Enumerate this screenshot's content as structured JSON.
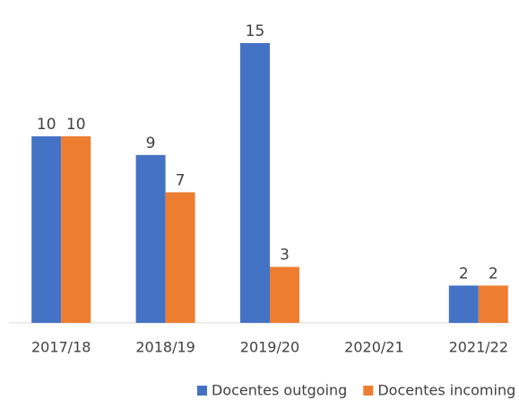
{
  "chart_data": {
    "type": "bar",
    "categories": [
      "2017/18",
      "2018/19",
      "2019/20",
      "2020/21",
      "2021/22"
    ],
    "series": [
      {
        "name": "Docentes outgoing",
        "color": "#4472c4",
        "values": [
          10,
          9,
          15,
          null,
          2
        ]
      },
      {
        "name": "Docentes incoming",
        "color": "#ed7d31",
        "values": [
          10,
          7,
          3,
          null,
          2
        ]
      }
    ]
  }
}
